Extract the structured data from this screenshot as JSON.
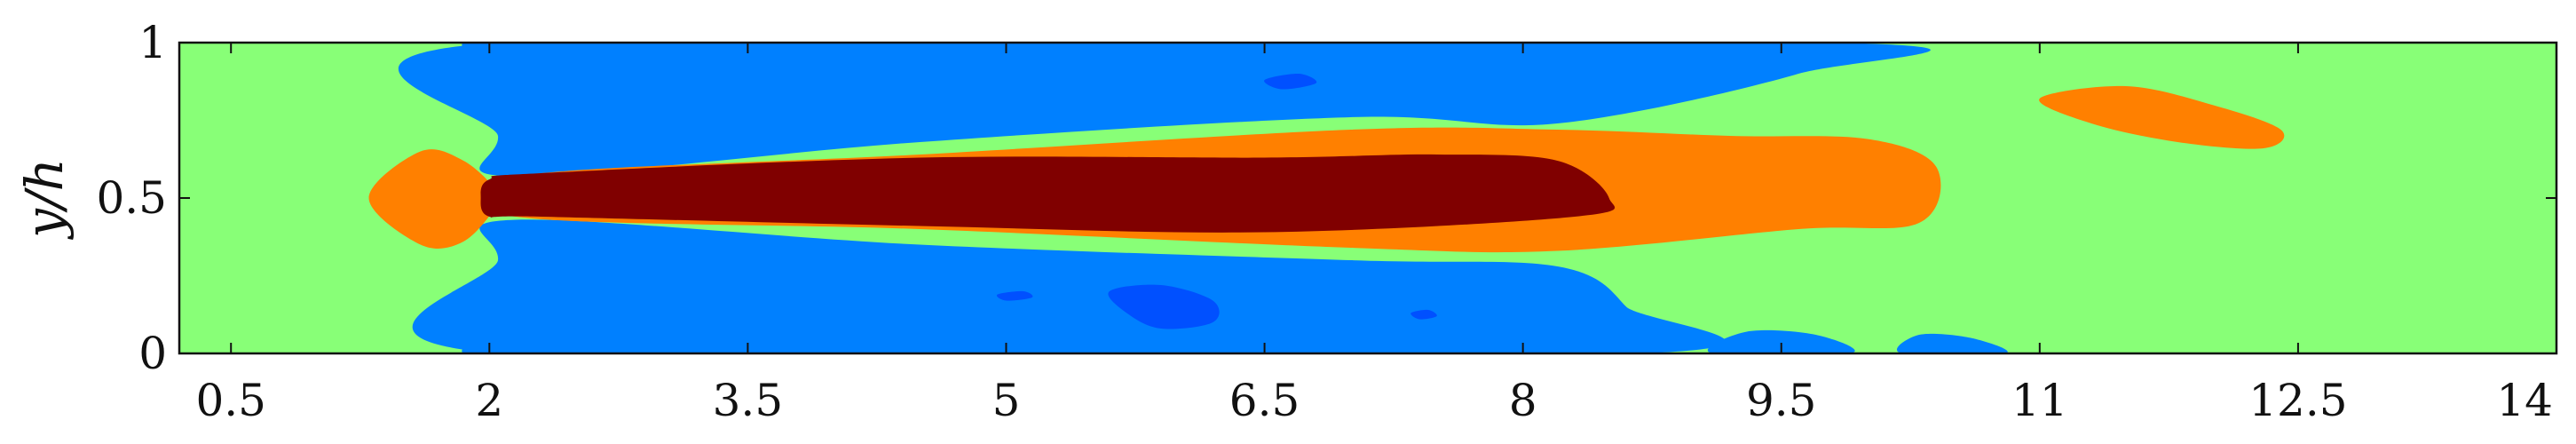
{
  "chart_data": {
    "type": "heatmap",
    "title": "",
    "xlabel": "",
    "ylabel": "y/h",
    "xlim": [
      0.2,
      14
    ],
    "ylim": [
      0,
      1
    ],
    "x_ticks": [
      0.5,
      2,
      3.5,
      5,
      6.5,
      8,
      9.5,
      11,
      12.5,
      14
    ],
    "x_tick_labels": [
      "0.5",
      "2",
      "3.5",
      "5",
      "6.5",
      "8",
      "9.5",
      "11",
      "12.5",
      "14"
    ],
    "y_ticks": [
      0,
      0.5,
      1
    ],
    "y_tick_labels": [
      "0",
      "0.5",
      "1"
    ],
    "grid": false,
    "colors": {
      "background": "#88ff77",
      "light_blue": "#0080ff",
      "blue": "#0050ff",
      "orange": "#ff8000",
      "dark_red": "#800000"
    },
    "regions": [
      {
        "level": "light_blue",
        "points": [
          [
            2.05,
            1
          ],
          [
            2.05,
            0.7
          ],
          [
            2.15,
            0.57
          ],
          [
            4.5,
            0.68
          ],
          [
            7,
            0.76
          ],
          [
            8.2,
            0.74
          ],
          [
            9.6,
            0.9
          ],
          [
            9.8,
            1
          ]
        ]
      },
      {
        "level": "light_blue",
        "points": [
          [
            2.05,
            0
          ],
          [
            2.05,
            0.3
          ],
          [
            2.15,
            0.43
          ],
          [
            4.5,
            0.35
          ],
          [
            7,
            0.3
          ],
          [
            8.2,
            0.28
          ],
          [
            8.6,
            0.15
          ],
          [
            8.7,
            0
          ]
        ]
      },
      {
        "level": "light_blue",
        "points": [
          [
            1.85,
            0
          ],
          [
            1.9,
            0.05
          ],
          [
            1.98,
            0.08
          ],
          [
            2.05,
            0.04
          ],
          [
            2.1,
            0
          ]
        ]
      },
      {
        "level": "light_blue",
        "points": [
          [
            1.85,
            1
          ],
          [
            1.9,
            0.95
          ],
          [
            1.98,
            0.92
          ],
          [
            2.05,
            0.96
          ],
          [
            2.1,
            1
          ]
        ]
      },
      {
        "level": "light_blue",
        "points": [
          [
            9.1,
            0
          ],
          [
            9.3,
            0.07
          ],
          [
            9.7,
            0.06
          ],
          [
            9.9,
            0
          ]
        ]
      },
      {
        "level": "light_blue",
        "points": [
          [
            10.2,
            0
          ],
          [
            10.3,
            0.06
          ],
          [
            10.6,
            0.05
          ],
          [
            10.8,
            0
          ]
        ]
      },
      {
        "level": "blue",
        "points": [
          [
            5.6,
            0.2
          ],
          [
            5.9,
            0.22
          ],
          [
            6.2,
            0.17
          ],
          [
            6.2,
            0.1
          ],
          [
            5.9,
            0.08
          ],
          [
            5.7,
            0.13
          ]
        ]
      },
      {
        "level": "blue",
        "points": [
          [
            6.5,
            0.88
          ],
          [
            6.7,
            0.9
          ],
          [
            6.8,
            0.87
          ],
          [
            6.6,
            0.85
          ]
        ]
      },
      {
        "level": "blue",
        "points": [
          [
            4.95,
            0.19
          ],
          [
            5.1,
            0.2
          ],
          [
            5.15,
            0.18
          ],
          [
            5.0,
            0.17
          ]
        ]
      },
      {
        "level": "blue",
        "points": [
          [
            7.35,
            0.13
          ],
          [
            7.45,
            0.14
          ],
          [
            7.5,
            0.12
          ],
          [
            7.4,
            0.11
          ]
        ]
      },
      {
        "level": "orange",
        "points": [
          [
            1.6,
            0.65
          ],
          [
            1.85,
            0.62
          ],
          [
            2.05,
            0.52
          ],
          [
            2.05,
            0.48
          ],
          [
            1.85,
            0.36
          ],
          [
            1.6,
            0.35
          ],
          [
            1.3,
            0.5
          ]
        ]
      },
      {
        "level": "orange",
        "points": [
          [
            2.15,
            0.57
          ],
          [
            4.5,
            0.64
          ],
          [
            7,
            0.72
          ],
          [
            8.2,
            0.72
          ],
          [
            9.2,
            0.7
          ],
          [
            10,
            0.69
          ],
          [
            10.4,
            0.6
          ],
          [
            10.3,
            0.42
          ],
          [
            9.6,
            0.4
          ],
          [
            8.2,
            0.33
          ],
          [
            7,
            0.34
          ],
          [
            4.5,
            0.4
          ],
          [
            2.15,
            0.44
          ]
        ]
      },
      {
        "level": "orange",
        "points": [
          [
            11,
            0.82
          ],
          [
            11.5,
            0.86
          ],
          [
            12,
            0.8
          ],
          [
            12.4,
            0.72
          ],
          [
            12.3,
            0.66
          ],
          [
            11.8,
            0.68
          ],
          [
            11.3,
            0.74
          ]
        ]
      },
      {
        "level": "dark_red",
        "points": [
          [
            2.0,
            0.56
          ],
          [
            2.3,
            0.58
          ],
          [
            4.5,
            0.63
          ],
          [
            6.5,
            0.63
          ],
          [
            7.5,
            0.64
          ],
          [
            8.2,
            0.62
          ],
          [
            8.5,
            0.5
          ],
          [
            8.3,
            0.44
          ],
          [
            6.5,
            0.39
          ],
          [
            4.5,
            0.41
          ],
          [
            2.3,
            0.44
          ],
          [
            2.0,
            0.44
          ],
          [
            1.95,
            0.5
          ]
        ]
      }
    ]
  }
}
